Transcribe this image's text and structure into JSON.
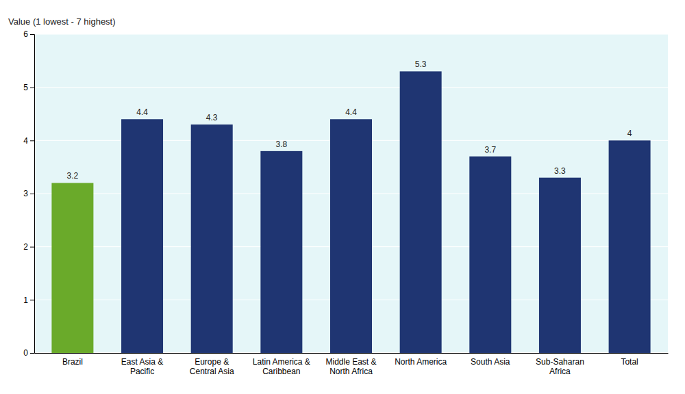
{
  "chart_data": {
    "type": "bar",
    "ylabel": "Value (1 lowest - 7 highest)",
    "categories": [
      "Brazil",
      "East Asia &\nPacific",
      "Europe &\nCentral Asia",
      "Latin America &\nCaribbean",
      "Middle East &\nNorth Africa",
      "North America",
      "South Asia",
      "Sub-Saharan\nAfrica",
      "Total"
    ],
    "values": [
      3.2,
      4.4,
      4.3,
      3.8,
      4.4,
      5.3,
      3.7,
      3.3,
      4.0
    ],
    "colors": [
      "#6aaa2a",
      "#1f3572",
      "#1f3572",
      "#1f3572",
      "#1f3572",
      "#1f3572",
      "#1f3572",
      "#1f3572",
      "#1f3572"
    ],
    "ylim": [
      0,
      6
    ],
    "yticks": [
      0,
      1,
      2,
      3,
      4,
      5,
      6
    ],
    "grid": true,
    "data_labels": true
  }
}
